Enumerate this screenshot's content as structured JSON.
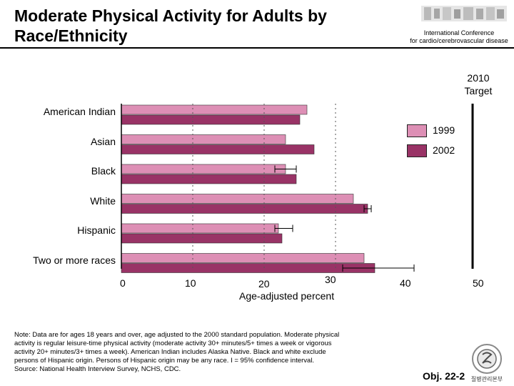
{
  "header": {
    "title_line1": "Moderate Physical Activity for Adults by",
    "title_line2": "Race/Ethnicity",
    "conference_line1": "International Conference",
    "conference_line2": "for cardio/cerebrovascular disease",
    "target_line1": "2010",
    "target_line2": "Target"
  },
  "footer": {
    "note_line1": "Note:  Data are for ages 18 years and over, age adjusted to the 2000 standard population. Moderate physical",
    "note_line2": "activity is regular leisure-time physical activity (moderate activity 30+ minutes/5+ times a week or vigorous",
    "note_line3": "activity 20+ minutes/3+ times a week). American Indian includes Alaska Native. Black and white exclude",
    "note_line4": "persons of Hispanic origin. Persons of Hispanic origin may be any race. I = 95% confidence interval.",
    "note_line5": "Source: National Health Interview Survey, NCHS, CDC.",
    "obj_label": "Obj. 22-2",
    "agency_logo_text": "질병관리본부"
  },
  "chart_data": {
    "type": "bar",
    "orientation": "horizontal",
    "categories": [
      "American Indian",
      "Asian",
      "Black",
      "White",
      "Hispanic",
      "Two or more races"
    ],
    "series": [
      {
        "name": "1999",
        "color": "#dd8fb5",
        "values": [
          26,
          23,
          23,
          32.5,
          22,
          34
        ],
        "ci_low": [
          26,
          23,
          21.5,
          32.5,
          21.5,
          34
        ],
        "ci_high": [
          26,
          23,
          24.5,
          32.5,
          24,
          34
        ]
      },
      {
        "name": "2002",
        "color": "#993366",
        "values": [
          25,
          27,
          24.5,
          34.5,
          22.5,
          35.5
        ],
        "ci_low": [
          25,
          27,
          24.5,
          34,
          22.5,
          31
        ],
        "ci_high": [
          25,
          27,
          24.5,
          35,
          22.5,
          41
        ]
      }
    ],
    "target": 50,
    "target_label": "2010 Target",
    "xlim": [
      0,
      50
    ],
    "x_ticks": [
      0,
      10,
      20,
      30,
      40,
      50
    ],
    "xlabel": "Age-adjusted percent",
    "grid": false,
    "legend_position": "right"
  }
}
